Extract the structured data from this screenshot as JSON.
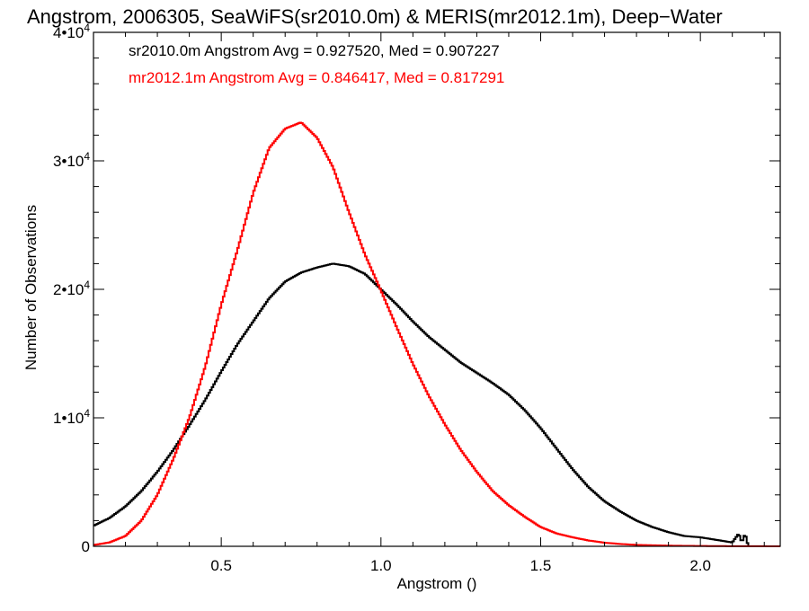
{
  "chart_data": {
    "type": "line",
    "style": "step histogram",
    "title": "Angstrom, 2006305, SeaWiFS(sr2010.0m) & MERIS(mr2012.1m), Deep−Water",
    "xlabel": "Angstrom ()",
    "ylabel": "Number of Observations",
    "xlim": [
      0.1,
      2.25
    ],
    "ylim": [
      0,
      40000
    ],
    "x_ticks": [
      0.5,
      1.0,
      1.5,
      2.0
    ],
    "x_tick_labels": [
      "0.5",
      "1.0",
      "1.5",
      "2.0"
    ],
    "y_ticks": [
      {
        "value": 0,
        "mant": "0",
        "exp": ""
      },
      {
        "value": 10000,
        "mant": "1•10",
        "exp": "4"
      },
      {
        "value": 20000,
        "mant": "2•10",
        "exp": "4"
      },
      {
        "value": 30000,
        "mant": "3•10",
        "exp": "4"
      },
      {
        "value": 40000,
        "mant": "4•10",
        "exp": "4"
      }
    ],
    "grid": false,
    "legend_position": "top-left",
    "series": [
      {
        "name": "sr2010.0m",
        "label": "sr2010.0m Angstrom Avg = 0.927520, Med = 0.907227",
        "color": "#000000",
        "x": [
          0.1,
          0.15,
          0.2,
          0.25,
          0.3,
          0.35,
          0.4,
          0.45,
          0.5,
          0.55,
          0.6,
          0.65,
          0.7,
          0.75,
          0.8,
          0.85,
          0.9,
          0.95,
          1.0,
          1.05,
          1.1,
          1.15,
          1.2,
          1.25,
          1.3,
          1.35,
          1.4,
          1.45,
          1.5,
          1.55,
          1.6,
          1.65,
          1.7,
          1.75,
          1.8,
          1.85,
          1.9,
          1.95,
          2.0,
          2.05,
          2.1,
          2.12,
          2.13,
          2.14,
          2.15
        ],
        "y": [
          1600,
          2200,
          3100,
          4300,
          5800,
          7500,
          9400,
          11400,
          13600,
          15700,
          17500,
          19300,
          20600,
          21300,
          21700,
          22000,
          21800,
          21200,
          20000,
          18800,
          17500,
          16300,
          15300,
          14300,
          13500,
          12700,
          11800,
          10600,
          9200,
          7600,
          6000,
          4600,
          3500,
          2700,
          2000,
          1500,
          1100,
          800,
          700,
          500,
          300,
          1000,
          300,
          1000,
          0
        ]
      },
      {
        "name": "mr2012.1m",
        "label": "mr2012.1m Angstrom Avg = 0.846417, Med = 0.817291",
        "color": "#ff0000",
        "x": [
          0.1,
          0.15,
          0.2,
          0.25,
          0.3,
          0.35,
          0.4,
          0.45,
          0.5,
          0.55,
          0.6,
          0.65,
          0.7,
          0.75,
          0.8,
          0.85,
          0.9,
          0.95,
          1.0,
          1.05,
          1.1,
          1.15,
          1.2,
          1.25,
          1.3,
          1.35,
          1.4,
          1.45,
          1.5,
          1.55,
          1.6,
          1.65,
          1.7,
          1.75,
          1.8,
          1.9,
          2.0,
          2.1,
          2.2,
          2.25
        ],
        "y": [
          100,
          300,
          800,
          2000,
          4000,
          6800,
          10000,
          14000,
          18800,
          23000,
          27500,
          31000,
          32500,
          33000,
          31800,
          29500,
          26000,
          22700,
          19900,
          17000,
          14200,
          11700,
          9500,
          7500,
          5800,
          4300,
          3200,
          2300,
          1500,
          1000,
          700,
          450,
          280,
          180,
          110,
          50,
          25,
          10,
          5,
          0
        ]
      }
    ]
  }
}
